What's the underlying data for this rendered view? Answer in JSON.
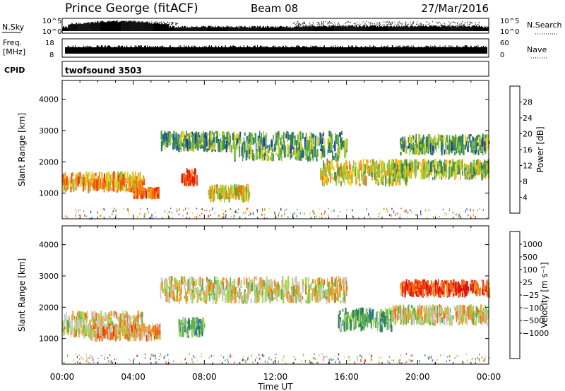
{
  "header": {
    "station": "Prince George (fitACF)",
    "beam": "Beam 08",
    "date": "27/Mar/2016"
  },
  "strip": {
    "nsky_label": "N.Sky",
    "nsky_ticks": [
      "10^5",
      "10^0"
    ],
    "nsearch_label": "N.Search",
    "freq_label": "Freq.",
    "freq_unit": "[MHz]",
    "freq_ticks": [
      "18",
      "8"
    ],
    "nave_label": "Nave",
    "nave_ticks": [
      "60",
      "0"
    ],
    "cpid_label": "CPID",
    "cpid_value": "twofsound 3503"
  },
  "panels": {
    "power": {
      "ylabel": "Slant Range [km]",
      "cbar_label": "Power [dB]"
    },
    "velocity": {
      "ylabel": "Slant Range [km]",
      "cbar_label": "Velocity [m s⁻¹]"
    }
  },
  "xaxis": {
    "label": "Time UT",
    "ticks": [
      "00:00",
      "04:00",
      "08:00",
      "12:00",
      "16:00",
      "20:00",
      "00:00"
    ]
  },
  "chart_data": [
    {
      "type": "heatmap",
      "title": "Power",
      "xlabel": "Time UT",
      "ylabel": "Slant Range [km]",
      "x_range_hours": [
        0,
        24
      ],
      "ylim": [
        180,
        4600
      ],
      "y_ticks": [
        1000,
        2000,
        3000,
        4000
      ],
      "colorbar": {
        "label": "Power [dB]",
        "ticks": [
          4,
          8,
          12,
          16,
          20,
          24,
          28
        ],
        "colors": [
          "#1a1aff",
          "#1c3ea8",
          "#2e7d5e",
          "#4c9a48",
          "#8fc43c",
          "#e8d020",
          "#f5a016",
          "#f27012",
          "#ee3a10",
          "#e01010"
        ]
      },
      "echo_bands": [
        {
          "t_start": 0.0,
          "t_end": 4.6,
          "r_start": 1000,
          "r_end": 1700,
          "level_db": 22
        },
        {
          "t_start": 4.0,
          "t_end": 5.4,
          "r_start": 800,
          "r_end": 1200,
          "level_db": 26
        },
        {
          "t_start": 6.7,
          "t_end": 7.6,
          "r_start": 1200,
          "r_end": 1800,
          "level_db": 28
        },
        {
          "t_start": 8.2,
          "t_end": 10.5,
          "r_start": 700,
          "r_end": 1300,
          "level_db": 20
        },
        {
          "t_start": 5.5,
          "t_end": 9.5,
          "r_start": 2300,
          "r_end": 3000,
          "level_db": 14
        },
        {
          "t_start": 9.5,
          "t_end": 16.0,
          "r_start": 2000,
          "r_end": 3000,
          "level_db": 12
        },
        {
          "t_start": 14.5,
          "t_end": 19.5,
          "r_start": 1200,
          "r_end": 2100,
          "level_db": 18
        },
        {
          "t_start": 18.5,
          "t_end": 24.0,
          "r_start": 1400,
          "r_end": 2100,
          "level_db": 16
        },
        {
          "t_start": 19.0,
          "t_end": 24.0,
          "r_start": 2200,
          "r_end": 2900,
          "level_db": 14
        }
      ]
    },
    {
      "type": "heatmap",
      "title": "Velocity",
      "xlabel": "Time UT",
      "ylabel": "Slant Range [km]",
      "x_range_hours": [
        0,
        24
      ],
      "ylim": [
        180,
        4600
      ],
      "y_ticks": [
        1000,
        2000,
        3000,
        4000
      ],
      "colorbar": {
        "label": "Velocity [m s⁻¹]",
        "ticks": [
          "1000",
          "500",
          "100",
          "25",
          "−25",
          "−100",
          "−500",
          "−1000"
        ],
        "colors": [
          "#2a3ea8",
          "#2870c0",
          "#2e7d5e",
          "#5cb04c",
          "#9ed84c",
          "#c8c8c8",
          "#f0a030",
          "#f27012",
          "#ee3a10",
          "#e01010"
        ]
      },
      "echo_bands": [
        {
          "t_start": 0.0,
          "t_end": 4.5,
          "r_start": 1000,
          "r_end": 1900,
          "velocity": 0
        },
        {
          "t_start": 1.5,
          "t_end": 5.5,
          "r_start": 900,
          "r_end": 1500,
          "velocity": -150
        },
        {
          "t_start": 6.5,
          "t_end": 8.0,
          "r_start": 1000,
          "r_end": 1700,
          "velocity": 100
        },
        {
          "t_start": 5.5,
          "t_end": 16.0,
          "r_start": 2100,
          "r_end": 3000,
          "velocity": 0
        },
        {
          "t_start": 15.5,
          "t_end": 18.5,
          "r_start": 1200,
          "r_end": 2000,
          "velocity": 150
        },
        {
          "t_start": 18.5,
          "t_end": 24.0,
          "r_start": 1400,
          "r_end": 2100,
          "velocity": 0
        },
        {
          "t_start": 19.0,
          "t_end": 24.0,
          "r_start": 2300,
          "r_end": 2900,
          "velocity": -300
        }
      ]
    }
  ]
}
